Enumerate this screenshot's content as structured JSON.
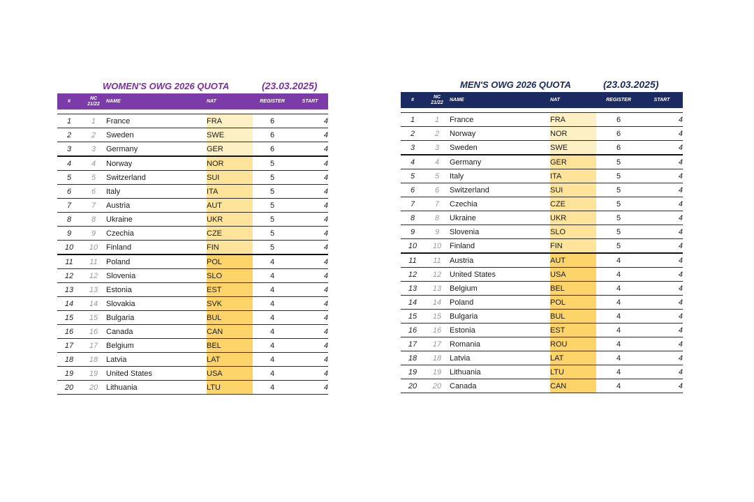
{
  "headers": {
    "rank": "#",
    "nc": "NC 21/22",
    "name": "NAME",
    "nat": "NAT",
    "register": "REGISTER",
    "start": "START"
  },
  "women": {
    "title": "WOMEN'S OWG 2026 QUOTA",
    "date": "(23.03.2025)",
    "accent_color": "#7b3ba8",
    "rows": [
      {
        "rank": "1",
        "nc": "1",
        "name": "France",
        "nat": "FRA",
        "register": "6",
        "start": "4"
      },
      {
        "rank": "2",
        "nc": "2",
        "name": "Sweden",
        "nat": "SWE",
        "register": "6",
        "start": "4"
      },
      {
        "rank": "3",
        "nc": "3",
        "name": "Germany",
        "nat": "GER",
        "register": "6",
        "start": "4"
      },
      {
        "rank": "4",
        "nc": "4",
        "name": "Norway",
        "nat": "NOR",
        "register": "5",
        "start": "4"
      },
      {
        "rank": "5",
        "nc": "5",
        "name": "Switzerland",
        "nat": "SUI",
        "register": "5",
        "start": "4"
      },
      {
        "rank": "6",
        "nc": "6",
        "name": "Italy",
        "nat": "ITA",
        "register": "5",
        "start": "4"
      },
      {
        "rank": "7",
        "nc": "7",
        "name": "Austria",
        "nat": "AUT",
        "register": "5",
        "start": "4"
      },
      {
        "rank": "8",
        "nc": "8",
        "name": "Ukraine",
        "nat": "UKR",
        "register": "5",
        "start": "4"
      },
      {
        "rank": "9",
        "nc": "9",
        "name": "Czechia",
        "nat": "CZE",
        "register": "5",
        "start": "4"
      },
      {
        "rank": "10",
        "nc": "10",
        "name": "Finland",
        "nat": "FIN",
        "register": "5",
        "start": "4"
      },
      {
        "rank": "11",
        "nc": "11",
        "name": "Poland",
        "nat": "POL",
        "register": "4",
        "start": "4"
      },
      {
        "rank": "12",
        "nc": "12",
        "name": "Slovenia",
        "nat": "SLO",
        "register": "4",
        "start": "4"
      },
      {
        "rank": "13",
        "nc": "13",
        "name": "Estonia",
        "nat": "EST",
        "register": "4",
        "start": "4"
      },
      {
        "rank": "14",
        "nc": "14",
        "name": "Slovakia",
        "nat": "SVK",
        "register": "4",
        "start": "4"
      },
      {
        "rank": "15",
        "nc": "15",
        "name": "Bulgaria",
        "nat": "BUL",
        "register": "4",
        "start": "4"
      },
      {
        "rank": "16",
        "nc": "16",
        "name": "Canada",
        "nat": "CAN",
        "register": "4",
        "start": "4"
      },
      {
        "rank": "17",
        "nc": "17",
        "name": "Belgium",
        "nat": "BEL",
        "register": "4",
        "start": "4"
      },
      {
        "rank": "18",
        "nc": "18",
        "name": "Latvia",
        "nat": "LAT",
        "register": "4",
        "start": "4"
      },
      {
        "rank": "19",
        "nc": "19",
        "name": "United States",
        "nat": "USA",
        "register": "4",
        "start": "4"
      },
      {
        "rank": "20",
        "nc": "20",
        "name": "Lithuania",
        "nat": "LTU",
        "register": "4",
        "start": "4"
      }
    ]
  },
  "men": {
    "title": "MEN'S OWG 2026 QUOTA",
    "date": "(23.03.2025)",
    "accent_color": "#1b2a60",
    "rows": [
      {
        "rank": "1",
        "nc": "1",
        "name": "France",
        "nat": "FRA",
        "register": "6",
        "start": "4"
      },
      {
        "rank": "2",
        "nc": "2",
        "name": "Norway",
        "nat": "NOR",
        "register": "6",
        "start": "4"
      },
      {
        "rank": "3",
        "nc": "3",
        "name": "Sweden",
        "nat": "SWE",
        "register": "6",
        "start": "4"
      },
      {
        "rank": "4",
        "nc": "4",
        "name": "Germany",
        "nat": "GER",
        "register": "5",
        "start": "4"
      },
      {
        "rank": "5",
        "nc": "5",
        "name": "Italy",
        "nat": "ITA",
        "register": "5",
        "start": "4"
      },
      {
        "rank": "6",
        "nc": "6",
        "name": "Switzerland",
        "nat": "SUI",
        "register": "5",
        "start": "4"
      },
      {
        "rank": "7",
        "nc": "7",
        "name": "Czechia",
        "nat": "CZE",
        "register": "5",
        "start": "4"
      },
      {
        "rank": "8",
        "nc": "8",
        "name": "Ukraine",
        "nat": "UKR",
        "register": "5",
        "start": "4"
      },
      {
        "rank": "9",
        "nc": "9",
        "name": "Slovenia",
        "nat": "SLO",
        "register": "5",
        "start": "4"
      },
      {
        "rank": "10",
        "nc": "10",
        "name": "Finland",
        "nat": "FIN",
        "register": "5",
        "start": "4"
      },
      {
        "rank": "11",
        "nc": "11",
        "name": "Austria",
        "nat": "AUT",
        "register": "4",
        "start": "4"
      },
      {
        "rank": "12",
        "nc": "12",
        "name": "United States",
        "nat": "USA",
        "register": "4",
        "start": "4"
      },
      {
        "rank": "13",
        "nc": "13",
        "name": "Belgium",
        "nat": "BEL",
        "register": "4",
        "start": "4"
      },
      {
        "rank": "14",
        "nc": "14",
        "name": "Poland",
        "nat": "POL",
        "register": "4",
        "start": "4"
      },
      {
        "rank": "15",
        "nc": "15",
        "name": "Bulgaria",
        "nat": "BUL",
        "register": "4",
        "start": "4"
      },
      {
        "rank": "16",
        "nc": "16",
        "name": "Estonia",
        "nat": "EST",
        "register": "4",
        "start": "4"
      },
      {
        "rank": "17",
        "nc": "17",
        "name": "Romania",
        "nat": "ROU",
        "register": "4",
        "start": "4"
      },
      {
        "rank": "18",
        "nc": "18",
        "name": "Latvia",
        "nat": "LAT",
        "register": "4",
        "start": "4"
      },
      {
        "rank": "19",
        "nc": "19",
        "name": "Lithuania",
        "nat": "LTU",
        "register": "4",
        "start": "4"
      },
      {
        "rank": "20",
        "nc": "20",
        "name": "Canada",
        "nat": "CAN",
        "register": "4",
        "start": "4"
      }
    ]
  }
}
